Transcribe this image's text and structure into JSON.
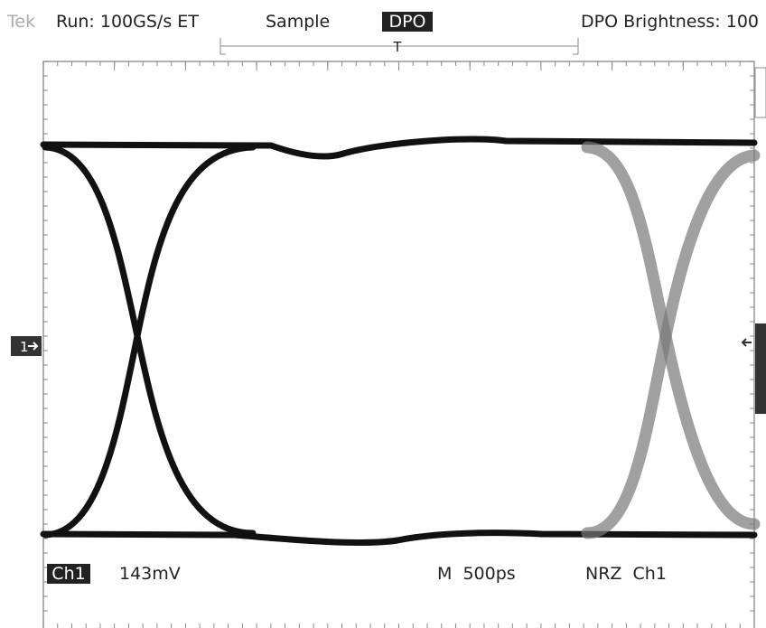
{
  "header": {
    "brand": "Tek",
    "run": "Run: 100GS/s ET",
    "mode": "Sample",
    "dpo": "DPO",
    "brightness": "DPO Brightness: 100"
  },
  "trigger_marker": "T",
  "channel_marker": "1",
  "footer": {
    "channel": "Ch1",
    "scale": "143mV",
    "timebase": "M  500ps",
    "pattern": "NRZ  Ch1"
  }
}
